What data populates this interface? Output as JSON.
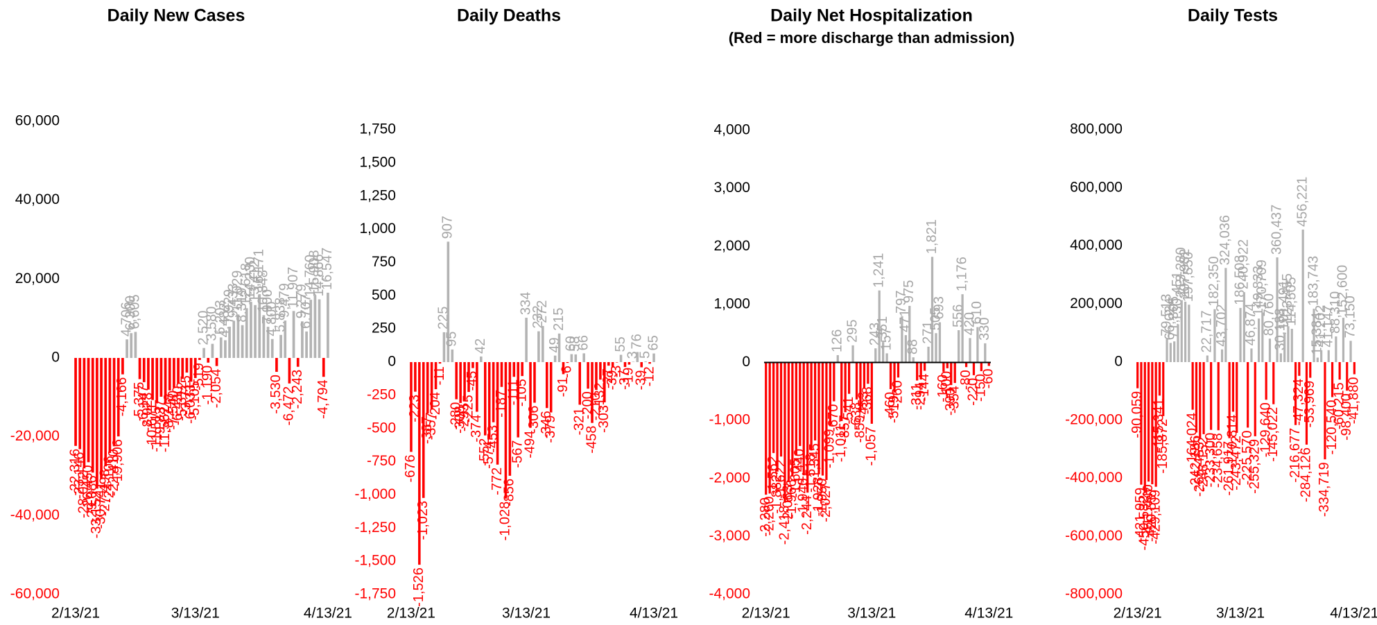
{
  "chart_data": [
    {
      "type": "bar",
      "title": "Daily New Cases",
      "categories": [
        "2/13/21",
        null,
        null,
        null,
        null,
        null,
        null,
        null,
        null,
        null,
        null,
        null,
        null,
        null,
        null,
        null,
        null,
        null,
        null,
        null,
        null,
        null,
        null,
        null,
        null,
        null,
        null,
        null,
        "3/13/21",
        null,
        null,
        null,
        null,
        null,
        null,
        null,
        null,
        null,
        null,
        null,
        null,
        null,
        null,
        null,
        null,
        null,
        null,
        null,
        null,
        null,
        null,
        null,
        null,
        null,
        null,
        null,
        null,
        null,
        null,
        "4/13/21"
      ],
      "values": [
        -22316,
        -23146,
        -28012,
        -26450,
        -29086,
        -33152,
        -30741,
        -27498,
        -24106,
        -22410,
        -19906,
        -4166,
        4706,
        6300,
        6605,
        -5375,
        -6147,
        -8028,
        -10671,
        -11515,
        -9837,
        -11562,
        -8248,
        -7540,
        -6430,
        -5312,
        -3715,
        -6033,
        -5105,
        -519,
        2520,
        -1190,
        3580,
        -2054,
        5203,
        4482,
        7929,
        9433,
        11029,
        8319,
        12618,
        14230,
        13412,
        16171,
        10848,
        7900,
        4800,
        -3530,
        5838,
        9479,
        -6472,
        11907,
        -2243,
        9279,
        6707,
        14760,
        15908,
        14866,
        -4794,
        16547
      ],
      "value_labels": [
        "-22,316",
        "-23,146",
        "-28,012",
        "-26,450",
        "-29,086",
        "-33,152",
        "-30,741",
        "-27,498",
        "-24,106",
        "-22,410",
        "-19,906",
        "-4,166",
        "4,706",
        "6,300",
        "6,605",
        "-5,375",
        "-6,147",
        "-8,028",
        "-10,671",
        "-11,515",
        "-9,837",
        "-11,562",
        "-8,248",
        "-7,540",
        "-6,430",
        "-5,312",
        "-3,715",
        "-6,033",
        "-5,105",
        "-519",
        "2,520",
        "-1,190",
        "3,580",
        "-2,054",
        "5,203",
        "4,482",
        "7,929",
        "9,433",
        "11,029",
        "8,319",
        "12,618",
        "14,230",
        "13,412",
        "16,171",
        "10,848",
        "7,900",
        "4,800",
        "-3,530",
        "5,838",
        "9,479",
        "-6,472",
        "11,907",
        "-2,243",
        "9,279",
        "6,707",
        "14,760",
        "15,908",
        "14,866",
        "-4,794",
        "16,547"
      ],
      "pos_color": "#b3b3b3",
      "neg_color": "#ff0000",
      "ylim": [
        -60000,
        60000
      ],
      "yticks": [
        {
          "value": -60000,
          "label": "-60,000"
        },
        {
          "value": -40000,
          "label": "-40,000"
        },
        {
          "value": -20000,
          "label": "-20,000"
        },
        0,
        {
          "value": 20000,
          "label": "20,000"
        },
        {
          "value": 40000,
          "label": "40,000"
        },
        {
          "value": 60000,
          "label": "60,000"
        }
      ],
      "zero_line": false
    },
    {
      "type": "bar",
      "title": "Daily Deaths",
      "categories": [
        "2/13/21",
        null,
        null,
        null,
        null,
        null,
        null,
        null,
        null,
        null,
        null,
        null,
        null,
        null,
        null,
        null,
        null,
        null,
        null,
        null,
        null,
        null,
        null,
        null,
        null,
        null,
        null,
        null,
        "3/13/21",
        null,
        null,
        null,
        null,
        null,
        null,
        null,
        null,
        null,
        null,
        null,
        null,
        null,
        null,
        null,
        null,
        null,
        null,
        null,
        null,
        null,
        null,
        null,
        null,
        null,
        null,
        null,
        null,
        null,
        null,
        "4/13/21"
      ],
      "values": [
        -676,
        -223,
        -1526,
        -1023,
        -387,
        -357,
        -204,
        -11,
        225,
        907,
        95,
        -280,
        -308,
        -293,
        -225,
        -45,
        -374,
        42,
        -552,
        -574,
        -453,
        -772,
        -187,
        -1028,
        -856,
        -111,
        -567,
        -105,
        334,
        -494,
        -306,
        232,
        272,
        -346,
        -379,
        49,
        215,
        -91,
        -6,
        60,
        58,
        -321,
        66,
        -200,
        -458,
        -210,
        -132,
        -303,
        -27,
        -39,
        -3,
        55,
        -37,
        -19,
        3,
        76,
        -39,
        5,
        -12,
        65
      ],
      "value_labels": [
        "-676",
        "-223",
        "-1,526",
        "-1,023",
        "-387",
        "-357",
        "-204",
        "-11",
        "225",
        "907",
        "95",
        "-280",
        "-308",
        "-293",
        "-225",
        "-45",
        "-374",
        "42",
        "-552",
        "-574",
        "-453",
        "-772",
        "-187",
        "-1,028",
        "-856",
        "-111",
        "-567",
        "-105",
        "334",
        "-494",
        "-306",
        "232",
        "272",
        "-346",
        "-379",
        "49",
        "215",
        "-91",
        "-6",
        "60",
        "58",
        "-321",
        "66",
        "-200",
        "-458",
        "-210",
        "-132",
        "-303",
        "-27",
        "-39",
        "-3",
        "55",
        "-37",
        "-19",
        "3",
        "76",
        "-39",
        "5",
        "-12",
        "65"
      ],
      "pos_color": "#b3b3b3",
      "neg_color": "#ff0000",
      "ylim": [
        -1750,
        1750
      ],
      "yticks": [
        {
          "value": -1750,
          "label": "-1,750"
        },
        {
          "value": -1500,
          "label": "-1,500"
        },
        {
          "value": -1250,
          "label": "-1,250"
        },
        {
          "value": -1000,
          "label": "-1,000"
        },
        -750,
        -500,
        -250,
        0,
        250,
        500,
        750,
        {
          "value": 1000,
          "label": "1,000"
        },
        {
          "value": 1250,
          "label": "1,250"
        },
        {
          "value": 1500,
          "label": "1,500"
        },
        {
          "value": 1750,
          "label": "1,750"
        }
      ],
      "zero_line": false
    },
    {
      "type": "bar",
      "title": "Daily Net Hospitalization",
      "subtitle": "(Red = more discharge than admission)",
      "categories": [
        "2/13/21",
        null,
        null,
        null,
        null,
        null,
        null,
        null,
        null,
        null,
        null,
        null,
        null,
        null,
        null,
        null,
        null,
        null,
        null,
        null,
        null,
        null,
        null,
        null,
        null,
        null,
        null,
        null,
        "3/13/21",
        null,
        null,
        null,
        null,
        null,
        null,
        null,
        null,
        null,
        null,
        null,
        null,
        null,
        null,
        null,
        null,
        null,
        null,
        null,
        null,
        null,
        null,
        null,
        null,
        null,
        null,
        null,
        null,
        null,
        null,
        "4/13/21"
      ],
      "values": [
        -2280,
        -2260,
        -1562,
        -1882,
        -1622,
        -2418,
        -2063,
        -1966,
        -1605,
        -1440,
        -1946,
        -2244,
        -1518,
        -1345,
        -1928,
        -1950,
        -2027,
        -1099,
        -670,
        126,
        -1011,
        -857,
        -541,
        295,
        -638,
        -859,
        -453,
        -368,
        -1057,
        243,
        1241,
        351,
        157,
        -460,
        -519,
        -260,
        797,
        471,
        975,
        88,
        -311,
        -294,
        -144,
        271,
        1821,
        505,
        693,
        -160,
        -100,
        -390,
        -354,
        556,
        1176,
        -80,
        420,
        -220,
        610,
        -150,
        330,
        -60
      ],
      "value_labels": [
        "-2,280",
        "-2,260",
        "-1,562",
        "-1,882",
        "-1,622",
        "-2,418",
        "-2,063",
        "-1,966",
        "-1,605",
        "-1,440",
        "-1,946",
        "-2,244",
        "-1,518",
        "-1,345",
        "-1,928",
        "-1,950",
        "-2,027",
        "-1,099",
        "-670",
        "126",
        "-1,011",
        "-857",
        "-541",
        "295",
        "-638",
        "-859",
        "-453",
        "-368",
        "-1,057",
        "243",
        "1,241",
        "351",
        "157",
        "-460",
        "-519",
        "-260",
        "797",
        "471",
        "975",
        "88",
        "-311",
        "-294",
        "-144",
        "271",
        "1,821",
        "505",
        "693",
        "-160",
        "-100",
        "-390",
        "-354",
        "556",
        "1,176",
        "-80",
        "420",
        "-220",
        "610",
        "-150",
        "330",
        "-60"
      ],
      "pos_color": "#b3b3b3",
      "neg_color": "#ff0000",
      "ylim": [
        -4000,
        4000
      ],
      "yticks": [
        {
          "value": -4000,
          "label": "-4,000"
        },
        {
          "value": -3000,
          "label": "-3,000"
        },
        {
          "value": -2000,
          "label": "-2,000"
        },
        {
          "value": -1000,
          "label": "-1,000"
        },
        0,
        {
          "value": 1000,
          "label": "1,000"
        },
        {
          "value": 2000,
          "label": "2,000"
        },
        {
          "value": 3000,
          "label": "3,000"
        },
        {
          "value": 4000,
          "label": "4,000"
        }
      ],
      "zero_line": true
    },
    {
      "type": "bar",
      "title": "Daily Tests",
      "categories": [
        "2/13/21",
        null,
        null,
        null,
        null,
        null,
        null,
        null,
        null,
        null,
        null,
        null,
        null,
        null,
        null,
        null,
        null,
        null,
        null,
        null,
        null,
        null,
        null,
        null,
        null,
        null,
        null,
        null,
        "3/13/21",
        null,
        null,
        null,
        null,
        null,
        null,
        null,
        null,
        null,
        null,
        null,
        null,
        null,
        null,
        null,
        null,
        null,
        null,
        null,
        null,
        null,
        null,
        null,
        null,
        null,
        null,
        null,
        null,
        null,
        null,
        "4/13/21"
      ],
      "values": [
        -90059,
        -421959,
        -450582,
        -411440,
        -420537,
        -429109,
        -115341,
        -185872,
        79513,
        66024,
        71305,
        130451,
        213280,
        207982,
        197550,
        -164024,
        -242186,
        -265453,
        -248152,
        22717,
        -233300,
        182350,
        -234658,
        43702,
        324036,
        -261917,
        -170814,
        -243472,
        186508,
        240922,
        -225570,
        46874,
        -255329,
        149833,
        170709,
        -129640,
        80760,
        -145022,
        360437,
        30188,
        101491,
        123455,
        114505,
        -216677,
        -47324,
        456221,
        -284126,
        -53969,
        183743,
        15384,
        41202,
        -334719,
        41147,
        -120540,
        88310,
        -60215,
        152600,
        -98400,
        73150,
        -41880
      ],
      "value_labels": [
        "-90,059",
        "-421,959",
        "-450,582",
        "-411,440",
        "-420,537",
        "-429,109",
        "-115,341",
        "-185,872",
        "79,513",
        "66,024",
        "71,305",
        "130,451",
        "213,280",
        "207,982",
        "197,550",
        "-164,024",
        "-242,186",
        "-265,453",
        "-248,152",
        "22,717",
        "-233,300",
        "182,350",
        "-234,658",
        "43,702",
        "324,036",
        "-261,917",
        "-170,814",
        "-243,472",
        "186,508",
        "240,922",
        "-225,570",
        "46,874",
        "-255,329",
        "149,833",
        "170,709",
        "-129,640",
        "80,760",
        "-145,022",
        "360,437",
        "30,188",
        "101,491",
        "123,455",
        "114,505",
        "-216,677",
        "-47,324",
        "456,221",
        "-284,126",
        "-53,969",
        "183,743",
        "15,384",
        "41,202",
        "-334,719",
        "41,147",
        "-120,540",
        "88,310",
        "-60,215",
        "152,600",
        "-98,400",
        "73,150",
        "-41,880"
      ],
      "pos_color": "#b3b3b3",
      "neg_color": "#ff0000",
      "ylim": [
        -800000,
        800000
      ],
      "yticks": [
        {
          "value": -800000,
          "label": "-800,000"
        },
        {
          "value": -600000,
          "label": "-600,000"
        },
        {
          "value": -400000,
          "label": "-400,000"
        },
        {
          "value": -200000,
          "label": "-200,000"
        },
        0,
        {
          "value": 200000,
          "label": "200,000"
        },
        {
          "value": 400000,
          "label": "400,000"
        },
        {
          "value": 600000,
          "label": "600,000"
        },
        {
          "value": 800000,
          "label": "800,000"
        }
      ],
      "zero_line": false
    }
  ]
}
